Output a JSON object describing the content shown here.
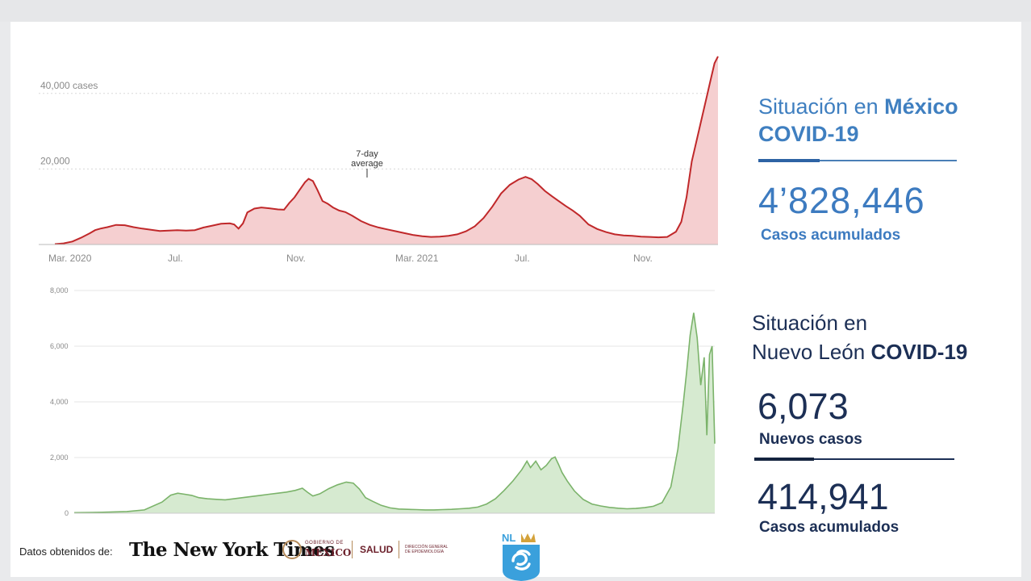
{
  "mexico_panel": {
    "title_light": "Situación en",
    "title_bold": "México",
    "subtitle": "COVID-19",
    "value": "4’828,446",
    "value_label": "Casos acumulados"
  },
  "nl_panel": {
    "title_line1": "Situación en",
    "title_line2_light": "Nuevo León",
    "title_line2_bold": "COVID-19",
    "new_cases_value": "6,073",
    "new_cases_label": "Nuevos casos",
    "cumulative_value": "414,941",
    "cumulative_label": "Casos acumulados"
  },
  "footer": {
    "source_label": "Datos obtenidos de:",
    "nyt_name": "The New York Times",
    "gob_small": "GOBIERNO DE",
    "gob_name": "MÉXICO",
    "salud": "SALUD",
    "direccion": "DIRECCIÓN GENERAL DE EPIDEMIOLOGÍA",
    "nl_logo_text": "NL"
  },
  "colors": {
    "mexico_line": "#c0282a",
    "mexico_fill": "#f5cfd0",
    "nl_line": "#7bb36a",
    "nl_fill": "#d6ead0",
    "mexico_text": "#3d7bc0",
    "nl_text": "#1c2f55"
  },
  "chart_data": [
    {
      "type": "area",
      "series": [
        {
          "name": "",
          "values": []
        }
      ],
      "y_ticks": [
        "20,000",
        "40,000 cases"
      ],
      "ylim": [
        0,
        50000
      ],
      "x_ticks": [
        "Mar. 2020",
        "Jul.",
        "Nov.",
        "Mar. 2021",
        "Jul.",
        "Nov."
      ],
      "annotation": "7-day average",
      "points": [
        [
          0,
          100
        ],
        [
          10,
          300
        ],
        [
          20,
          800
        ],
        [
          30,
          1800
        ],
        [
          40,
          3000
        ],
        [
          46,
          3800
        ],
        [
          52,
          4200
        ],
        [
          60,
          4600
        ],
        [
          70,
          5200
        ],
        [
          80,
          5100
        ],
        [
          90,
          4600
        ],
        [
          100,
          4200
        ],
        [
          110,
          3900
        ],
        [
          120,
          3600
        ],
        [
          130,
          3700
        ],
        [
          140,
          3800
        ],
        [
          150,
          3700
        ],
        [
          160,
          3800
        ],
        [
          170,
          4500
        ],
        [
          180,
          5000
        ],
        [
          190,
          5500
        ],
        [
          200,
          5600
        ],
        [
          205,
          5300
        ],
        [
          210,
          4200
        ],
        [
          215,
          5600
        ],
        [
          220,
          8500
        ],
        [
          228,
          9500
        ],
        [
          236,
          9800
        ],
        [
          245,
          9600
        ],
        [
          255,
          9300
        ],
        [
          262,
          9200
        ],
        [
          268,
          11000
        ],
        [
          274,
          12500
        ],
        [
          280,
          14500
        ],
        [
          286,
          16500
        ],
        [
          290,
          17400
        ],
        [
          295,
          16800
        ],
        [
          300,
          14500
        ],
        [
          306,
          11500
        ],
        [
          312,
          10800
        ],
        [
          318,
          9800
        ],
        [
          325,
          9000
        ],
        [
          332,
          8600
        ],
        [
          340,
          7600
        ],
        [
          350,
          6200
        ],
        [
          360,
          5200
        ],
        [
          370,
          4500
        ],
        [
          380,
          4000
        ],
        [
          390,
          3500
        ],
        [
          400,
          3000
        ],
        [
          410,
          2500
        ],
        [
          420,
          2200
        ],
        [
          430,
          2000
        ],
        [
          440,
          2100
        ],
        [
          450,
          2300
        ],
        [
          460,
          2700
        ],
        [
          470,
          3500
        ],
        [
          480,
          4800
        ],
        [
          490,
          7000
        ],
        [
          500,
          10000
        ],
        [
          510,
          13500
        ],
        [
          520,
          15800
        ],
        [
          530,
          17200
        ],
        [
          538,
          17900
        ],
        [
          545,
          17300
        ],
        [
          552,
          16000
        ],
        [
          560,
          14200
        ],
        [
          568,
          12800
        ],
        [
          576,
          11500
        ],
        [
          584,
          10200
        ],
        [
          592,
          9000
        ],
        [
          600,
          7600
        ],
        [
          610,
          5300
        ],
        [
          620,
          4100
        ],
        [
          630,
          3300
        ],
        [
          640,
          2700
        ],
        [
          650,
          2400
        ],
        [
          660,
          2300
        ],
        [
          670,
          2100
        ],
        [
          680,
          2000
        ],
        [
          690,
          1900
        ],
        [
          700,
          2000
        ],
        [
          710,
          3400
        ],
        [
          716,
          6000
        ],
        [
          722,
          12500
        ],
        [
          728,
          22000
        ],
        [
          734,
          28000
        ],
        [
          740,
          34000
        ],
        [
          746,
          40000
        ],
        [
          750,
          44000
        ],
        [
          754,
          48000
        ],
        [
          758,
          49800
        ]
      ]
    },
    {
      "type": "area",
      "series": [
        {
          "name": "",
          "values": []
        }
      ],
      "y_ticks": [
        "2,000",
        "4,000",
        "6,000",
        "8,000"
      ],
      "ylim": [
        0,
        8000
      ],
      "points": [
        [
          0,
          20
        ],
        [
          20,
          30
        ],
        [
          40,
          40
        ],
        [
          60,
          60
        ],
        [
          80,
          120
        ],
        [
          100,
          400
        ],
        [
          110,
          650
        ],
        [
          118,
          720
        ],
        [
          126,
          680
        ],
        [
          134,
          640
        ],
        [
          142,
          560
        ],
        [
          152,
          520
        ],
        [
          162,
          500
        ],
        [
          172,
          480
        ],
        [
          182,
          520
        ],
        [
          192,
          560
        ],
        [
          202,
          600
        ],
        [
          212,
          640
        ],
        [
          222,
          680
        ],
        [
          232,
          720
        ],
        [
          242,
          760
        ],
        [
          252,
          820
        ],
        [
          260,
          900
        ],
        [
          266,
          750
        ],
        [
          272,
          620
        ],
        [
          280,
          700
        ],
        [
          290,
          880
        ],
        [
          300,
          1020
        ],
        [
          310,
          1120
        ],
        [
          318,
          1080
        ],
        [
          325,
          870
        ],
        [
          332,
          560
        ],
        [
          340,
          430
        ],
        [
          350,
          280
        ],
        [
          360,
          190
        ],
        [
          370,
          150
        ],
        [
          380,
          140
        ],
        [
          390,
          130
        ],
        [
          400,
          120
        ],
        [
          410,
          120
        ],
        [
          420,
          130
        ],
        [
          430,
          140
        ],
        [
          440,
          160
        ],
        [
          450,
          180
        ],
        [
          460,
          220
        ],
        [
          470,
          330
        ],
        [
          480,
          520
        ],
        [
          490,
          820
        ],
        [
          500,
          1160
        ],
        [
          510,
          1560
        ],
        [
          516,
          1870
        ],
        [
          520,
          1640
        ],
        [
          526,
          1870
        ],
        [
          532,
          1560
        ],
        [
          538,
          1720
        ],
        [
          544,
          1960
        ],
        [
          548,
          2020
        ],
        [
          552,
          1750
        ],
        [
          556,
          1460
        ],
        [
          562,
          1150
        ],
        [
          570,
          800
        ],
        [
          580,
          500
        ],
        [
          590,
          330
        ],
        [
          600,
          260
        ],
        [
          610,
          210
        ],
        [
          620,
          180
        ],
        [
          630,
          160
        ],
        [
          640,
          170
        ],
        [
          650,
          200
        ],
        [
          660,
          250
        ],
        [
          670,
          380
        ],
        [
          680,
          950
        ],
        [
          688,
          2300
        ],
        [
          694,
          3900
        ],
        [
          698,
          5100
        ],
        [
          702,
          6400
        ],
        [
          706,
          7200
        ],
        [
          710,
          6300
        ],
        [
          714,
          4600
        ],
        [
          718,
          5600
        ],
        [
          721,
          2800
        ],
        [
          724,
          5700
        ],
        [
          727,
          6000
        ],
        [
          730,
          2500
        ]
      ]
    }
  ]
}
